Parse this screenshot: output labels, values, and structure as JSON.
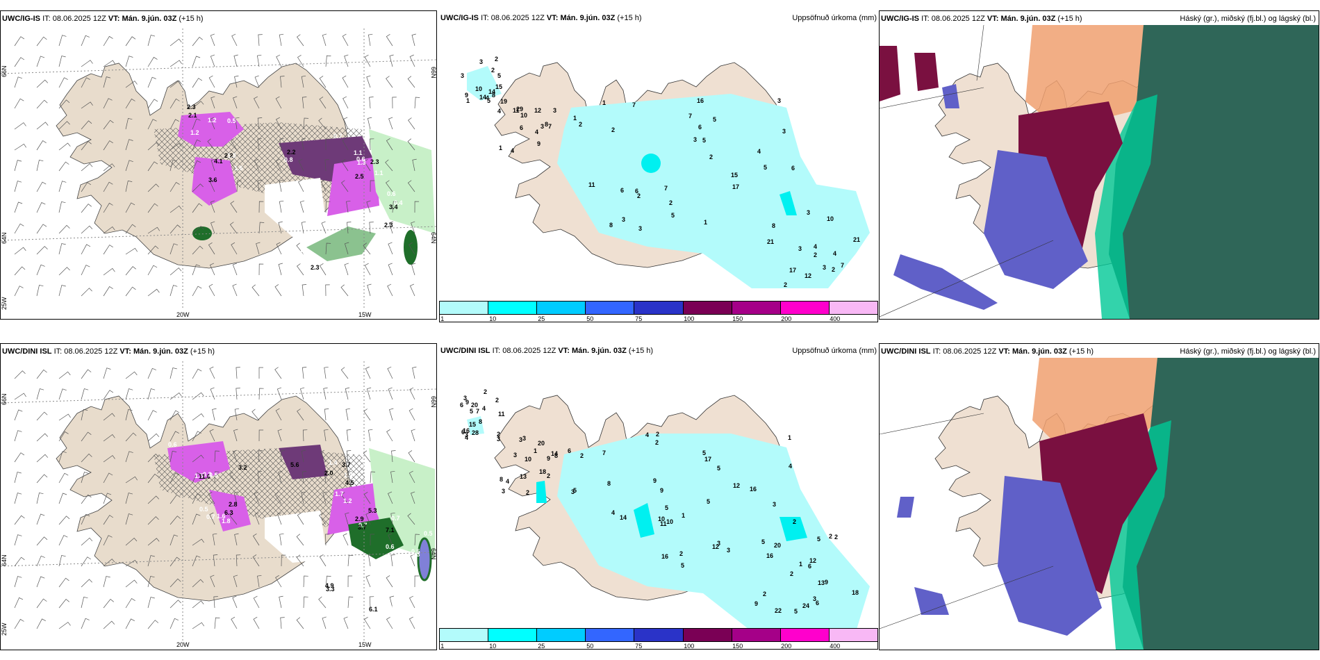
{
  "panels": {
    "top": {
      "wind": {
        "model": "UWC/IG-IS",
        "it_label": "IT:",
        "it_value": "08.06.2025 12Z",
        "vt_label": "VT:",
        "vt_value": "Mán. 9.jún. 03Z",
        "lead": "(+15 h)",
        "axis": {
          "lat_66": "66N",
          "lat_64": "64N",
          "lon_25": "25W",
          "lon_20": "20W",
          "lon_15": "15W"
        },
        "values": [
          "2.1",
          "1.6",
          "0.7",
          "1.1",
          "0.4",
          "0.3",
          "1.2",
          "2.2",
          "1.1",
          "2.3",
          "0.6",
          "0.7",
          "0.5",
          "3.6",
          "2.2",
          "2.5",
          "3.4",
          "0.8",
          "2.3",
          "4.1",
          "0.6",
          "1.3",
          "2.3",
          "2.3",
          "1.2",
          "1.3",
          "0.8"
        ]
      },
      "precip": {
        "model": "UWC/IG-IS",
        "it_label": "IT:",
        "it_value": "08.06.2025 12Z",
        "vt_label": "VT:",
        "vt_value": "Mán. 9.jún. 03Z",
        "lead": "(+15 h)",
        "field_title": "Uppsöfnuð úrkoma (mm)",
        "values": [
          "5",
          "7",
          "3",
          "8",
          "8",
          "4",
          "3",
          "2",
          "3",
          "4",
          "9",
          "1",
          "2",
          "2",
          "3",
          "2",
          "2",
          "5",
          "4",
          "7",
          "8",
          "5",
          "3",
          "2",
          "4",
          "2",
          "2",
          "6",
          "12",
          "10",
          "14",
          "3",
          "15",
          "17",
          "29",
          "14",
          "16",
          "11",
          "21",
          "9",
          "3",
          "6",
          "6",
          "7",
          "12",
          "15",
          "3",
          "5",
          "4",
          "3",
          "10",
          "7",
          "6",
          "10",
          "4",
          "19",
          "4",
          "7",
          "2",
          "1",
          "3",
          "2",
          "17",
          "21",
          "11",
          "1",
          "1",
          "1",
          "3",
          "6",
          "5",
          "5",
          "8",
          "3"
        ]
      },
      "cloud": {
        "model": "UWC/IG-IS",
        "it_label": "IT:",
        "it_value": "08.06.2025 12Z",
        "vt_label": "VT:",
        "vt_value": "Mán. 9.jún. 03Z",
        "lead": "(+15 h)",
        "field_title": "Háský (gr.), miðský (fj.bl.) og lágský (bl.)"
      }
    },
    "bottom": {
      "wind": {
        "model": "UWC/DINI ISL",
        "it_label": "IT:",
        "it_value": "08.06.2025 12Z",
        "vt_label": "VT:",
        "vt_value": "Mán. 9.jún. 03Z",
        "lead": "(+15 h)",
        "axis": {
          "lat_66": "66N",
          "lat_64": "64N",
          "lon_25": "25W",
          "lon_20": "20W",
          "lon_15": "15W"
        },
        "values": [
          "1.5",
          "1.6",
          "2.0",
          "1.7",
          "0.5",
          "0.4",
          "0.3",
          "0.5",
          "1.3",
          "1.2",
          "0.6",
          "0.7",
          "11.0",
          "1.8",
          "3.7",
          "0.7",
          "0.5",
          "6.1",
          "3.2",
          "2.8",
          "5.6",
          "5.3",
          "7.1",
          "3.3",
          "0.5",
          "0.7",
          "1.4",
          "3.7",
          "0.7",
          "4.9",
          "0.6",
          "6.3",
          "4.5",
          "2.9",
          "1.3",
          "1.3"
        ]
      },
      "precip": {
        "model": "UWC/DINI ISL",
        "it_label": "IT:",
        "it_value": "08.06.2025 12Z",
        "vt_label": "VT:",
        "vt_value": "Mán. 9.jún. 03Z",
        "lead": "(+15 h)",
        "field_title": "Uppsöfnuð úrkoma (mm)",
        "values": [
          "2",
          "2",
          "3",
          "2",
          "1",
          "3",
          "2",
          "1",
          "2",
          "3",
          "6",
          "8",
          "5",
          "12",
          "18",
          "3",
          "2",
          "2",
          "13",
          "14",
          "7",
          "9",
          "11",
          "20",
          "20",
          "15",
          "16",
          "16",
          "9",
          "2",
          "20",
          "7",
          "12",
          "22",
          "8",
          "4",
          "5",
          "16",
          "6",
          "8",
          "2",
          "1",
          "3",
          "6",
          "4",
          "4",
          "3",
          "2",
          "2",
          "3",
          "5",
          "6",
          "4",
          "2",
          "3",
          "2",
          "4",
          "10",
          "18",
          "13",
          "28",
          "5",
          "14",
          "9",
          "3",
          "9",
          "4",
          "10",
          "24",
          "10",
          "16",
          "17",
          "5",
          "5",
          "9",
          "8",
          "12",
          "5",
          "3",
          "3",
          "11",
          "5",
          "3",
          "1",
          "2",
          "6",
          "9",
          "5",
          "5"
        ]
      },
      "cloud": {
        "model": "UWC/DINI ISL",
        "it_label": "IT:",
        "it_value": "08.06.2025 12Z",
        "vt_label": "VT:",
        "vt_value": "Mán. 9.jún. 03Z",
        "lead": "(+15 h)",
        "field_title": "Háský (gr.), miðský (fj.bl.) og lágský (bl.)"
      }
    }
  },
  "colorbar": {
    "labels": [
      "1",
      "10",
      "25",
      "50",
      "75",
      "100",
      "150",
      "200",
      "400"
    ],
    "colors": [
      "#b3fbfb",
      "#00ffff",
      "#00ccff",
      "#3366ff",
      "#2a33c8",
      "#7a0055",
      "#a50088",
      "#ff00cc",
      "#f8b8f5"
    ]
  },
  "colors": {
    "land": "#efe0d2",
    "land_wind": "#e8dccc",
    "precip_light": "#b3fbfb",
    "precip_mid": "#00f0f0",
    "purple_dark": "#6e3a78",
    "purple_bright": "#d860e8",
    "green_light": "#c8f0c8",
    "green_dark": "#1f6e2a",
    "cloud_high": "#2f6658",
    "cloud_high_edge": "#00c896",
    "cloud_mid": "#6060c8",
    "cloud_mid_dark": "#7a1040",
    "cloud_orange": "#f0a070"
  },
  "icons": {
    "wind_barb": "wind-barb-icon"
  }
}
